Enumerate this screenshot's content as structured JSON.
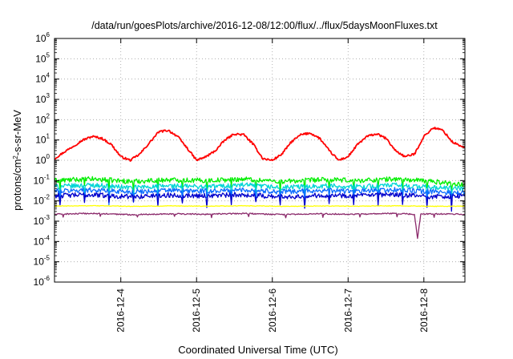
{
  "chart_data": {
    "type": "line",
    "title": "/data/run/goesPlots/archive/2016-12-08/12:00/flux/../flux/5daysMoonFluxes.txt",
    "xlabel": "Coordinated Universal Time (UTC)",
    "ylabel": {
      "base": "protons/cm",
      "sup": "2",
      "rest": "-s-sr-MeV"
    },
    "x_axis": {
      "type": "date",
      "range": [
        "2016-12-03 03:00",
        "2016-12-08 13:00"
      ],
      "ticks": [
        "2016-12-4",
        "2016-12-5",
        "2016-12-6",
        "2016-12-7",
        "2016-12-8"
      ],
      "tick_label_orientation": "vertical"
    },
    "y_axis": {
      "scale": "log",
      "range": [
        1e-06,
        1000000.0
      ],
      "ticks": [
        {
          "value": -6,
          "base": "10",
          "exp": "-6"
        },
        {
          "value": -5,
          "base": "10",
          "exp": "-5"
        },
        {
          "value": -4,
          "base": "10",
          "exp": "-4"
        },
        {
          "value": -3,
          "base": "10",
          "exp": "-3"
        },
        {
          "value": -2,
          "base": "10",
          "exp": "-2"
        },
        {
          "value": -1,
          "base": "10",
          "exp": "-1"
        },
        {
          "value": 0,
          "base": "10",
          "exp": "0"
        },
        {
          "value": 1,
          "base": "10",
          "exp": "1"
        },
        {
          "value": 2,
          "base": "10",
          "exp": "2"
        },
        {
          "value": 3,
          "base": "10",
          "exp": "3"
        },
        {
          "value": 4,
          "base": "10",
          "exp": "4"
        },
        {
          "value": 5,
          "base": "10",
          "exp": "5"
        },
        {
          "value": 6,
          "base": "10",
          "exp": "6"
        }
      ]
    },
    "grid": true,
    "legend": "none",
    "series": [
      {
        "color": "#ff0000",
        "x": [
          "2016-12-03 03:00",
          "2016-12-03 06:00",
          "2016-12-03 09:00",
          "2016-12-03 12:00",
          "2016-12-03 15:00",
          "2016-12-03 18:00",
          "2016-12-03 21:00",
          "2016-12-04 00:00",
          "2016-12-04 03:00",
          "2016-12-04 06:00",
          "2016-12-04 09:00",
          "2016-12-04 12:00",
          "2016-12-04 15:00",
          "2016-12-04 18:00",
          "2016-12-04 21:00",
          "2016-12-05 00:00",
          "2016-12-05 03:00",
          "2016-12-05 06:00",
          "2016-12-05 09:00",
          "2016-12-05 12:00",
          "2016-12-05 15:00",
          "2016-12-05 18:00",
          "2016-12-05 21:00",
          "2016-12-06 00:00",
          "2016-12-06 03:00",
          "2016-12-06 06:00",
          "2016-12-06 09:00",
          "2016-12-06 12:00",
          "2016-12-06 15:00",
          "2016-12-06 18:00",
          "2016-12-06 21:00",
          "2016-12-07 00:00",
          "2016-12-07 03:00",
          "2016-12-07 06:00",
          "2016-12-07 09:00",
          "2016-12-07 12:00",
          "2016-12-07 15:00",
          "2016-12-07 18:00",
          "2016-12-07 21:00",
          "2016-12-08 00:00",
          "2016-12-08 03:00",
          "2016-12-08 06:00",
          "2016-12-08 09:00",
          "2016-12-08 13:00"
        ],
        "values": [
          1.2,
          2.5,
          5,
          10,
          15,
          12,
          6,
          1.5,
          1.0,
          2,
          7,
          25,
          30,
          15,
          4,
          1.0,
          1.5,
          3,
          10,
          20,
          18,
          6,
          1.2,
          1.0,
          2,
          8,
          18,
          22,
          12,
          3,
          1.0,
          1.5,
          6,
          15,
          20,
          12,
          3,
          1.5,
          2,
          15,
          40,
          30,
          8,
          4
        ]
      },
      {
        "color": "#00ee00",
        "x": [
          "2016-12-03 03:00",
          "2016-12-03 15:00",
          "2016-12-04 03:00",
          "2016-12-04 15:00",
          "2016-12-05 03:00",
          "2016-12-05 15:00",
          "2016-12-06 03:00",
          "2016-12-06 15:00",
          "2016-12-07 03:00",
          "2016-12-07 15:00",
          "2016-12-08 03:00",
          "2016-12-08 13:00"
        ],
        "values": [
          0.1,
          0.12,
          0.09,
          0.11,
          0.1,
          0.12,
          0.09,
          0.11,
          0.1,
          0.12,
          0.09,
          0.06
        ]
      },
      {
        "color": "#00d5d5",
        "x": [
          "2016-12-03 03:00",
          "2016-12-03 15:00",
          "2016-12-04 03:00",
          "2016-12-04 15:00",
          "2016-12-05 03:00",
          "2016-12-05 15:00",
          "2016-12-06 03:00",
          "2016-12-06 15:00",
          "2016-12-07 03:00",
          "2016-12-07 15:00",
          "2016-12-08 03:00",
          "2016-12-08 13:00"
        ],
        "values": [
          0.05,
          0.06,
          0.045,
          0.055,
          0.05,
          0.06,
          0.045,
          0.055,
          0.05,
          0.06,
          0.045,
          0.04
        ]
      },
      {
        "color": "#0a6bff",
        "x": [
          "2016-12-03 03:00",
          "2016-12-03 15:00",
          "2016-12-04 03:00",
          "2016-12-04 15:00",
          "2016-12-05 03:00",
          "2016-12-05 15:00",
          "2016-12-06 03:00",
          "2016-12-06 15:00",
          "2016-12-07 03:00",
          "2016-12-07 15:00",
          "2016-12-08 03:00",
          "2016-12-08 13:00"
        ],
        "values": [
          0.03,
          0.035,
          0.028,
          0.033,
          0.03,
          0.035,
          0.028,
          0.033,
          0.03,
          0.035,
          0.028,
          0.025
        ]
      },
      {
        "color": "#0000cc",
        "x": [
          "2016-12-03 03:00",
          "2016-12-03 15:00",
          "2016-12-04 03:00",
          "2016-12-04 15:00",
          "2016-12-05 03:00",
          "2016-12-05 15:00",
          "2016-12-06 03:00",
          "2016-12-06 15:00",
          "2016-12-07 03:00",
          "2016-12-07 15:00",
          "2016-12-08 03:00",
          "2016-12-08 13:00"
        ],
        "values": [
          0.018,
          0.02,
          0.016,
          0.019,
          0.018,
          0.02,
          0.016,
          0.019,
          0.018,
          0.02,
          0.016,
          0.017
        ]
      },
      {
        "color": "#ffff00",
        "x": [
          "2016-12-03 03:00",
          "2016-12-03 15:00",
          "2016-12-04 03:00",
          "2016-12-04 15:00",
          "2016-12-05 03:00",
          "2016-12-05 15:00",
          "2016-12-06 03:00",
          "2016-12-06 15:00",
          "2016-12-07 03:00",
          "2016-12-07 15:00",
          "2016-12-08 03:00",
          "2016-12-08 13:00"
        ],
        "values": [
          0.0055,
          0.0058,
          0.0054,
          0.0056,
          0.0055,
          0.0057,
          0.0054,
          0.0056,
          0.0055,
          0.0057,
          0.0054,
          0.0055
        ]
      },
      {
        "color": "#8b2a6b",
        "x": [
          "2016-12-03 03:00",
          "2016-12-03 15:00",
          "2016-12-04 03:00",
          "2016-12-04 15:00",
          "2016-12-05 03:00",
          "2016-12-05 15:00",
          "2016-12-06 03:00",
          "2016-12-06 15:00",
          "2016-12-07 03:00",
          "2016-12-07 15:00",
          "2016-12-07 21:00",
          "2016-12-07 22:00",
          "2016-12-07 23:00",
          "2016-12-08 03:00",
          "2016-12-08 13:00"
        ],
        "values": [
          0.0022,
          0.0024,
          0.0021,
          0.0023,
          0.0022,
          0.0024,
          0.0021,
          0.0023,
          0.0022,
          0.0024,
          0.0022,
          0.00014,
          0.0022,
          0.0023,
          0.0022
        ]
      }
    ]
  }
}
